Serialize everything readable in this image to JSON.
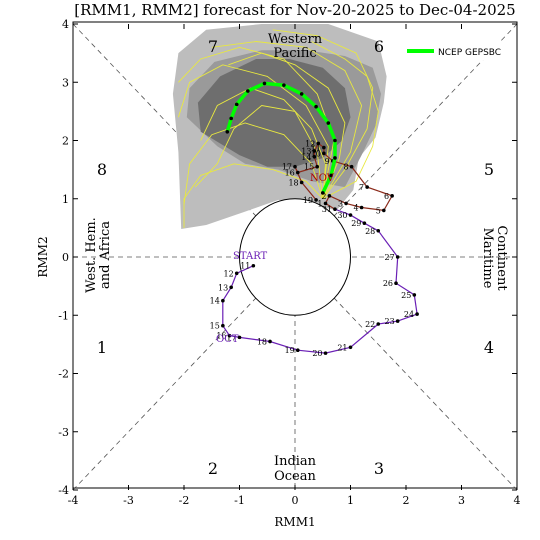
{
  "chart_data": {
    "type": "scatter",
    "title": "[RMM1, RMM2] forecast for Nov-20-2025 to Dec-04-2025",
    "xlabel": "RMM1",
    "ylabel": "RMM2",
    "xlim": [
      -4,
      4
    ],
    "ylim": [
      -4,
      4
    ],
    "xticks": [
      "-4",
      "-3",
      "-2",
      "-1",
      "0",
      "1",
      "2",
      "3",
      "4"
    ],
    "yticks": [
      "-4",
      "-3",
      "-2",
      "-1",
      "0",
      "1",
      "2",
      "3",
      "4"
    ],
    "phases": [
      "1",
      "2",
      "3",
      "4",
      "5",
      "6",
      "7",
      "8"
    ],
    "regions": {
      "west_hem_1": "West. Hem.",
      "west_hem_2": "and Africa",
      "indian_1": "Indian",
      "indian_2": "Ocean",
      "maritime_1": "Maritime",
      "maritime_2": "Continent",
      "western_pacific_1": "Western",
      "western_pacific_2": "Pacific"
    },
    "labels": {
      "start": "START",
      "oct": "OCT",
      "nov": "NOV"
    },
    "legend": {
      "entry": "NCEP GEPSBC",
      "color": "#00ff00",
      "position": "top-right"
    },
    "colors": {
      "observed_oct": "#6a1fb5",
      "observed_nov": "#8b2a1a",
      "forecast_mean": "#00ff00",
      "members": "#e8e840",
      "spread_outer": "#bdbdbd",
      "spread_middle": "#9a9a9a",
      "spread_inner": "#6e6e6e"
    },
    "observed_oct": [
      {
        "day": "11",
        "x": -0.75,
        "y": -0.15
      },
      {
        "day": "12",
        "x": -1.05,
        "y": -0.28
      },
      {
        "day": "13",
        "x": -1.15,
        "y": -0.52
      },
      {
        "day": "14",
        "x": -1.3,
        "y": -0.75
      },
      {
        "day": "15",
        "x": -1.3,
        "y": -1.18
      },
      {
        "day": "16",
        "x": -1.18,
        "y": -1.35
      },
      {
        "day": "17",
        "x": -1.0,
        "y": -1.38
      },
      {
        "day": "18",
        "x": -0.45,
        "y": -1.45
      },
      {
        "day": "19",
        "x": 0.05,
        "y": -1.6
      },
      {
        "day": "20",
        "x": 0.55,
        "y": -1.65
      },
      {
        "day": "21",
        "x": 1.0,
        "y": -1.55
      },
      {
        "day": "22",
        "x": 1.5,
        "y": -1.15
      },
      {
        "day": "23",
        "x": 1.85,
        "y": -1.1
      },
      {
        "day": "24",
        "x": 2.2,
        "y": -0.98
      },
      {
        "day": "25",
        "x": 2.15,
        "y": -0.65
      },
      {
        "day": "26",
        "x": 1.82,
        "y": -0.45
      },
      {
        "day": "27",
        "x": 1.85,
        "y": 0.0
      },
      {
        "day": "28",
        "x": 1.5,
        "y": 0.45
      },
      {
        "day": "29",
        "x": 1.25,
        "y": 0.58
      },
      {
        "day": "30",
        "x": 1.0,
        "y": 0.72
      },
      {
        "day": "31",
        "x": 0.72,
        "y": 0.82
      }
    ],
    "observed_nov": [
      {
        "day": "1",
        "x": 0.55,
        "y": 0.92
      },
      {
        "day": "2",
        "x": 0.62,
        "y": 1.05
      },
      {
        "day": "3",
        "x": 0.92,
        "y": 0.92
      },
      {
        "day": "4",
        "x": 1.2,
        "y": 0.85
      },
      {
        "day": "5",
        "x": 1.6,
        "y": 0.8
      },
      {
        "day": "6",
        "x": 1.75,
        "y": 1.05
      },
      {
        "day": "7",
        "x": 1.3,
        "y": 1.2
      },
      {
        "day": "8",
        "x": 1.02,
        "y": 1.55
      },
      {
        "day": "9",
        "x": 0.68,
        "y": 1.65
      },
      {
        "day": "10",
        "x": 0.52,
        "y": 1.78
      },
      {
        "day": "11",
        "x": 0.52,
        "y": 1.88
      },
      {
        "day": "12",
        "x": 0.42,
        "y": 1.95
      },
      {
        "day": "13",
        "x": 0.35,
        "y": 1.82
      },
      {
        "day": "14",
        "x": 0.35,
        "y": 1.72
      },
      {
        "day": "15",
        "x": 0.4,
        "y": 1.55
      },
      {
        "day": "16",
        "x": 0.05,
        "y": 1.45
      },
      {
        "day": "17",
        "x": 0.0,
        "y": 1.55
      },
      {
        "day": "18",
        "x": 0.12,
        "y": 1.28
      },
      {
        "day": "19",
        "x": 0.38,
        "y": 0.98
      }
    ],
    "forecast_mean": [
      {
        "x": 0.5,
        "y": 1.1
      },
      {
        "x": 0.65,
        "y": 1.4
      },
      {
        "x": 0.72,
        "y": 1.7
      },
      {
        "x": 0.72,
        "y": 2.0
      },
      {
        "x": 0.6,
        "y": 2.3
      },
      {
        "x": 0.38,
        "y": 2.58
      },
      {
        "x": 0.12,
        "y": 2.8
      },
      {
        "x": -0.2,
        "y": 2.95
      },
      {
        "x": -0.55,
        "y": 2.98
      },
      {
        "x": -0.85,
        "y": 2.85
      },
      {
        "x": -1.05,
        "y": 2.62
      },
      {
        "x": -1.15,
        "y": 2.38
      },
      {
        "x": -1.22,
        "y": 2.15
      }
    ],
    "spread_outer": [
      [
        -2.05,
        0.48
      ],
      [
        -1.6,
        0.55
      ],
      [
        -0.9,
        0.78
      ],
      [
        -0.3,
        0.98
      ],
      [
        0.3,
        0.9
      ],
      [
        0.75,
        0.8
      ],
      [
        1.05,
        1.15
      ],
      [
        1.15,
        1.7
      ],
      [
        1.45,
        2.05
      ],
      [
        1.6,
        2.65
      ],
      [
        1.65,
        3.1
      ],
      [
        1.5,
        3.7
      ],
      [
        0.6,
        4.0
      ],
      [
        -0.6,
        4.0
      ],
      [
        -1.6,
        3.9
      ],
      [
        -2.1,
        3.5
      ],
      [
        -2.2,
        2.8
      ],
      [
        -2.1,
        1.8
      ],
      [
        -2.05,
        0.48
      ]
    ],
    "spread_middle": [
      [
        -1.4,
        1.9
      ],
      [
        -0.9,
        1.6
      ],
      [
        -0.3,
        1.5
      ],
      [
        0.3,
        1.3
      ],
      [
        0.9,
        1.2
      ],
      [
        1.2,
        1.75
      ],
      [
        1.45,
        2.25
      ],
      [
        1.55,
        2.8
      ],
      [
        1.4,
        3.25
      ],
      [
        0.9,
        3.45
      ],
      [
        0.2,
        3.55
      ],
      [
        -0.6,
        3.55
      ],
      [
        -1.45,
        3.35
      ],
      [
        -1.9,
        2.9
      ],
      [
        -1.95,
        2.4
      ],
      [
        -1.4,
        1.9
      ]
    ],
    "spread_inner": [
      [
        -1.0,
        1.75
      ],
      [
        -0.5,
        1.55
      ],
      [
        0.0,
        1.55
      ],
      [
        0.5,
        1.7
      ],
      [
        0.85,
        2.0
      ],
      [
        1.0,
        2.4
      ],
      [
        0.9,
        2.9
      ],
      [
        0.5,
        3.25
      ],
      [
        -0.1,
        3.4
      ],
      [
        -0.7,
        3.4
      ],
      [
        -1.35,
        3.1
      ],
      [
        -1.75,
        2.65
      ],
      [
        -1.7,
        2.15
      ],
      [
        -1.0,
        1.75
      ]
    ],
    "members": [
      [
        [
          0.5,
          1.0
        ],
        [
          0.55,
          1.6
        ],
        [
          0.3,
          2.2
        ],
        [
          -0.2,
          2.7
        ],
        [
          -0.8,
          2.9
        ],
        [
          -1.4,
          2.6
        ],
        [
          -1.7,
          2.0
        ]
      ],
      [
        [
          0.5,
          1.0
        ],
        [
          0.8,
          1.7
        ],
        [
          0.9,
          2.3
        ],
        [
          0.6,
          2.9
        ],
        [
          0.0,
          3.3
        ],
        [
          -0.6,
          3.5
        ],
        [
          -1.2,
          3.3
        ]
      ],
      [
        [
          0.5,
          1.0
        ],
        [
          0.3,
          1.6
        ],
        [
          -0.2,
          2.1
        ],
        [
          -0.9,
          2.3
        ],
        [
          -1.5,
          2.1
        ],
        [
          -1.9,
          1.6
        ],
        [
          -2.0,
          0.9
        ]
      ],
      [
        [
          0.5,
          1.0
        ],
        [
          0.9,
          1.5
        ],
        [
          1.3,
          2.2
        ],
        [
          1.4,
          2.9
        ],
        [
          1.1,
          3.5
        ],
        [
          0.4,
          3.8
        ],
        [
          -0.4,
          3.9
        ]
      ],
      [
        [
          0.5,
          1.0
        ],
        [
          0.6,
          1.9
        ],
        [
          0.2,
          2.6
        ],
        [
          -0.5,
          3.1
        ],
        [
          -1.3,
          3.3
        ],
        [
          -1.9,
          3.0
        ],
        [
          -2.1,
          2.4
        ]
      ],
      [
        [
          0.5,
          1.0
        ],
        [
          0.2,
          1.3
        ],
        [
          -0.4,
          1.5
        ],
        [
          -1.1,
          1.6
        ],
        [
          -1.7,
          1.4
        ],
        [
          -2.0,
          1.0
        ],
        [
          -2.0,
          0.5
        ]
      ],
      [
        [
          0.5,
          1.0
        ],
        [
          1.0,
          1.8
        ],
        [
          1.2,
          2.6
        ],
        [
          0.9,
          3.2
        ],
        [
          0.2,
          3.6
        ],
        [
          -0.7,
          3.7
        ],
        [
          -1.5,
          3.6
        ]
      ],
      [
        [
          0.5,
          1.0
        ],
        [
          0.7,
          2.0
        ],
        [
          0.4,
          2.8
        ],
        [
          -0.2,
          3.4
        ],
        [
          -1.0,
          3.6
        ],
        [
          -1.7,
          3.4
        ],
        [
          -2.1,
          3.0
        ]
      ],
      [
        [
          0.5,
          1.0
        ],
        [
          0.4,
          1.8
        ],
        [
          0.0,
          2.5
        ],
        [
          -0.6,
          2.6
        ],
        [
          -1.1,
          2.2
        ],
        [
          -1.4,
          1.6
        ],
        [
          -1.8,
          1.2
        ]
      ],
      [
        [
          0.5,
          1.0
        ],
        [
          1.1,
          1.3
        ],
        [
          1.4,
          1.9
        ],
        [
          1.5,
          2.5
        ],
        [
          1.3,
          3.1
        ],
        [
          0.9,
          3.4
        ],
        [
          0.3,
          3.7
        ]
      ]
    ],
    "grid": false
  }
}
